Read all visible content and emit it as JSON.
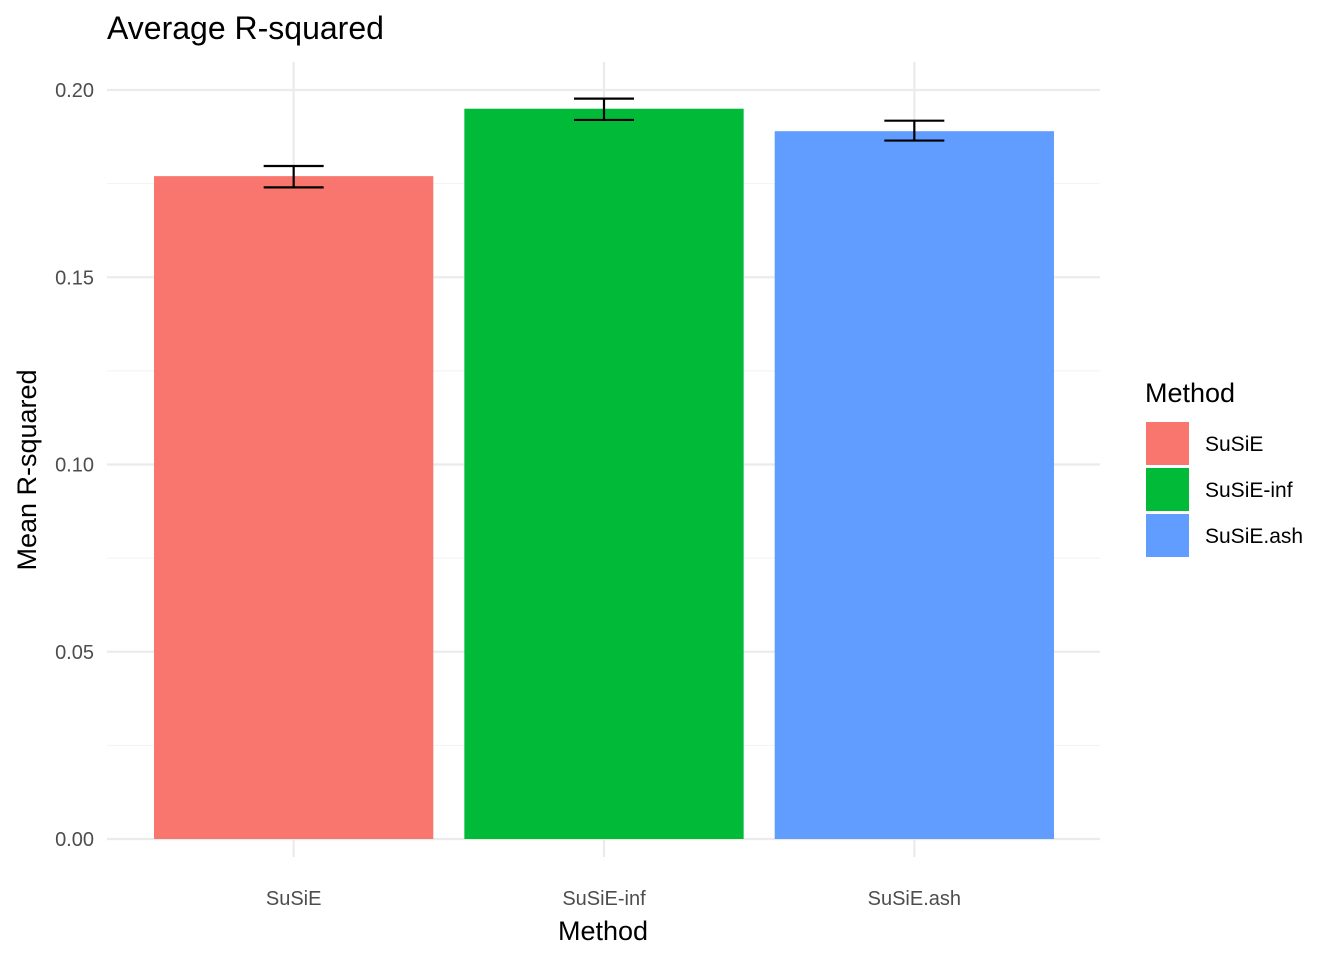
{
  "chart_data": {
    "type": "bar",
    "title": "Average R-squared",
    "xlabel": "Method",
    "ylabel": "Mean R-squared",
    "categories": [
      "SuSiE",
      "SuSiE-inf",
      "SuSiE.ash"
    ],
    "values": [
      0.177,
      0.195,
      0.189
    ],
    "error_low": [
      0.174,
      0.192,
      0.1865
    ],
    "error_high": [
      0.1797,
      0.1977,
      0.1918
    ],
    "colors": [
      "#F8766D",
      "#00BA38",
      "#619CFF"
    ],
    "ylim": [
      0,
      0.2
    ],
    "yticks": [
      0.0,
      0.05,
      0.1,
      0.15,
      0.2
    ],
    "ytick_labels": [
      "0.00",
      "0.05",
      "0.10",
      "0.15",
      "0.20"
    ],
    "grid": true,
    "legend": {
      "title": "Method",
      "position": "right",
      "entries": [
        "SuSiE",
        "SuSiE-inf",
        "SuSiE.ash"
      ]
    }
  }
}
